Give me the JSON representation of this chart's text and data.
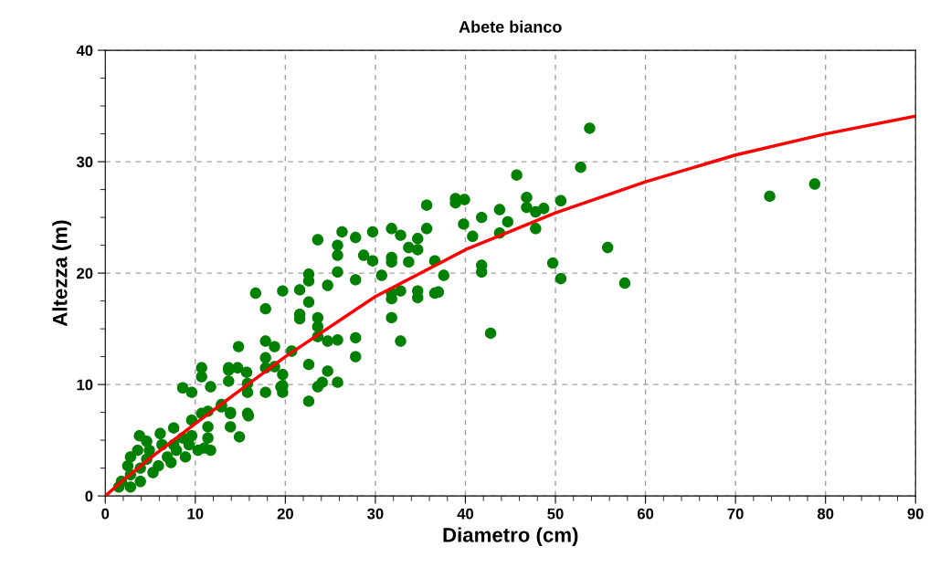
{
  "chart_data": {
    "type": "scatter",
    "title": "Abete bianco",
    "xlabel": "Diametro (cm)",
    "ylabel": "Altezza (m)",
    "xlim": [
      0,
      90
    ],
    "ylim": [
      0,
      40
    ],
    "xticks": [
      0,
      10,
      20,
      30,
      40,
      50,
      60,
      70,
      80,
      90
    ],
    "yticks": [
      0,
      10,
      20,
      30,
      40
    ],
    "grid": true,
    "marker": "circle",
    "series": [
      {
        "color": "#008000",
        "x": [
          53.8,
          52.8,
          45.7,
          38.9,
          38.9,
          39.9,
          46.8,
          46.8,
          47.8,
          48.7,
          50.6,
          43.8,
          41.8,
          39.8,
          44.7,
          40.8,
          43.8,
          47.8,
          41.8,
          41.8,
          37.6,
          49.7,
          50.6,
          55.8,
          57.7,
          42.8,
          37.0,
          73.8,
          78.8,
          35.7,
          35.7,
          31.8,
          32.8,
          34.7,
          29.7,
          26.3,
          27.8,
          23.6,
          25.8,
          25.8,
          28.7,
          29.7,
          31.8,
          31.8,
          33.7,
          33.7,
          34.7,
          36.6,
          30.7,
          27.8,
          25.8,
          22.6,
          22.6,
          24.7,
          21.6,
          19.7,
          16.7,
          17.8,
          22.6,
          21.6,
          21.6,
          23.6,
          23.6,
          23.6,
          24.7,
          25.8,
          27.8,
          27.8,
          31.8,
          32.8,
          31.8,
          34.7,
          34.7,
          36.6,
          31.8,
          32.8,
          20.7,
          18.8,
          17.8,
          17.8,
          14.8,
          17.8,
          18.8,
          19.7,
          19.7,
          19.7,
          17.8,
          22.6,
          24.7,
          24.1,
          23.6,
          25.8,
          22.6,
          15.8,
          15.8,
          13.7,
          14.7,
          13.7,
          13.9,
          15.8,
          12.9,
          10.7,
          8.6,
          10.7,
          11.7,
          9.6,
          13.7,
          15.7,
          12.9,
          13.9,
          13.9,
          14.9,
          15.9,
          19.5,
          3.8,
          6.1,
          7.6,
          9.6,
          10.7,
          11.4,
          11.4,
          11.4,
          9.6,
          8.6,
          7.9,
          6.9,
          8.9,
          10.3,
          6.3,
          4.9,
          4.6,
          2.8,
          2.5,
          2.8,
          2.8,
          1.8,
          1.5,
          3.9,
          3.9,
          5.3,
          5.9,
          7.3,
          7.6,
          9.3,
          11.0,
          11.7,
          4.6,
          3.6
        ],
        "values": [
          33.0,
          29.5,
          28.8,
          26.7,
          26.3,
          26.6,
          26.8,
          25.9,
          25.5,
          25.8,
          26.5,
          25.7,
          25.0,
          24.4,
          24.6,
          23.3,
          23.6,
          24.0,
          20.7,
          20.1,
          19.8,
          20.9,
          19.5,
          22.3,
          19.1,
          14.6,
          18.3,
          26.9,
          28.0,
          26.1,
          24.0,
          24.0,
          23.4,
          23.1,
          23.7,
          23.7,
          23.2,
          23.0,
          22.5,
          21.6,
          21.6,
          21.1,
          21.4,
          21.0,
          22.3,
          21.0,
          22.1,
          21.1,
          19.8,
          19.4,
          20.1,
          19.9,
          19.3,
          18.9,
          18.5,
          18.4,
          18.2,
          16.8,
          17.4,
          16.3,
          15.9,
          16.0,
          15.2,
          14.3,
          13.9,
          14.0,
          14.2,
          12.5,
          18.2,
          18.4,
          17.7,
          18.4,
          17.8,
          18.2,
          16.0,
          13.9,
          13.0,
          13.4,
          13.9,
          12.4,
          13.4,
          11.5,
          11.6,
          10.9,
          9.9,
          9.3,
          9.3,
          11.8,
          11.2,
          10.2,
          9.8,
          10.2,
          8.5,
          10.1,
          9.3,
          11.3,
          11.5,
          10.3,
          7.5,
          7.4,
          8.0,
          11.5,
          9.7,
          10.7,
          9.8,
          9.3,
          11.5,
          11.1,
          8.2,
          7.4,
          6.2,
          5.3,
          7.2,
          9.8,
          5.4,
          5.6,
          6.1,
          6.8,
          7.4,
          7.6,
          6.2,
          5.2,
          5.4,
          5.2,
          4.1,
          3.5,
          3.5,
          4.1,
          4.6,
          4.1,
          3.3,
          3.5,
          2.7,
          1.9,
          0.8,
          1.3,
          0.8,
          1.3,
          2.5,
          2.1,
          2.7,
          3.0,
          4.6,
          4.6,
          4.3,
          4.1,
          4.9,
          4.1
        ]
      },
      {
        "type": "line",
        "color": "#ff0000",
        "marker": "none",
        "x": [
          0,
          2,
          5,
          10,
          20,
          30,
          40,
          50,
          60,
          70,
          80,
          90
        ],
        "values": [
          0,
          1.4,
          3.4,
          6.5,
          12.5,
          17.9,
          22.1,
          25.4,
          28.2,
          30.6,
          32.5,
          34.1
        ]
      }
    ]
  }
}
